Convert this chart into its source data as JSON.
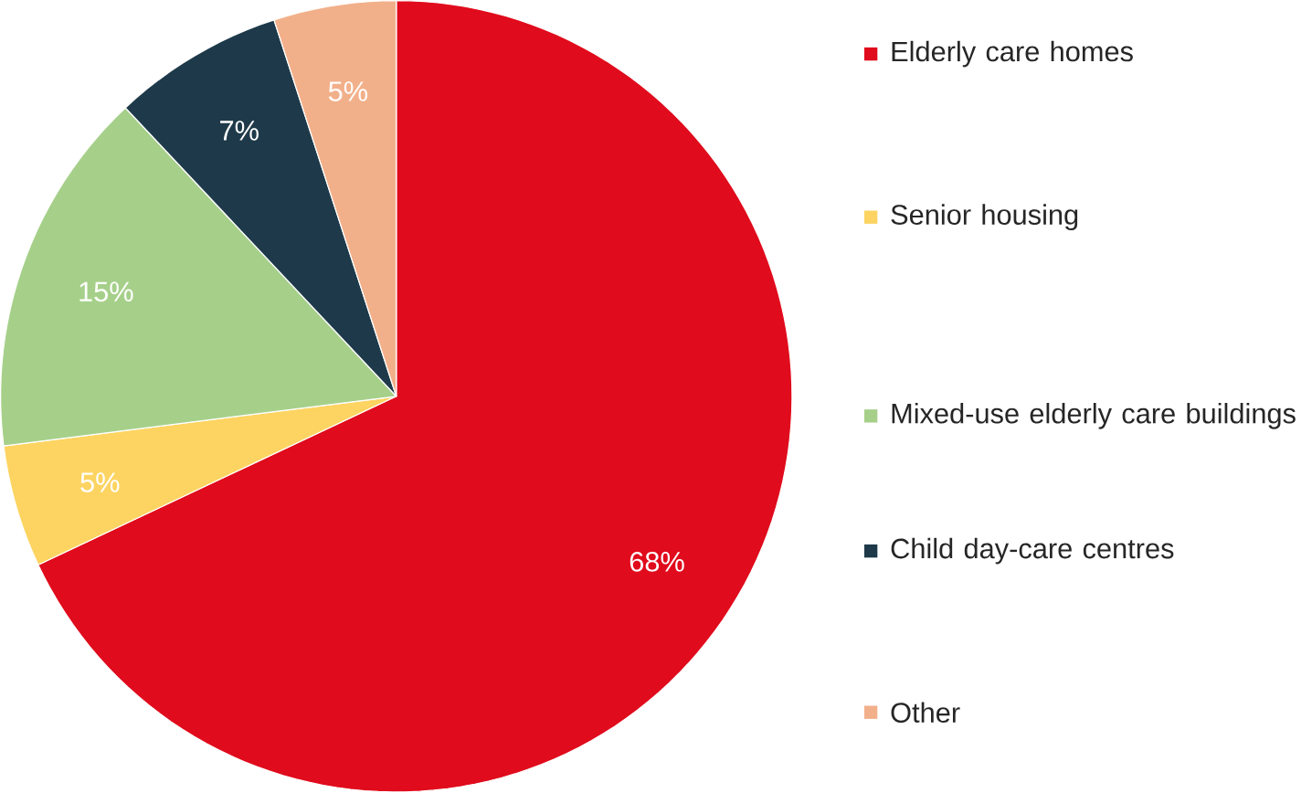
{
  "chart_data": {
    "type": "pie",
    "categories": [
      "Elderly care homes",
      "Senior housing",
      "Mixed-use elderly care buildings",
      "Child day-care centres",
      "Other"
    ],
    "values": [
      68,
      5,
      15,
      7,
      5
    ],
    "colors": [
      "#e00b1c",
      "#fdd462",
      "#a6d08a",
      "#1e3a4a",
      "#f2b08a"
    ],
    "value_labels": [
      "68%",
      "5%",
      "15%",
      "7%",
      "5%"
    ],
    "legend": "right"
  }
}
